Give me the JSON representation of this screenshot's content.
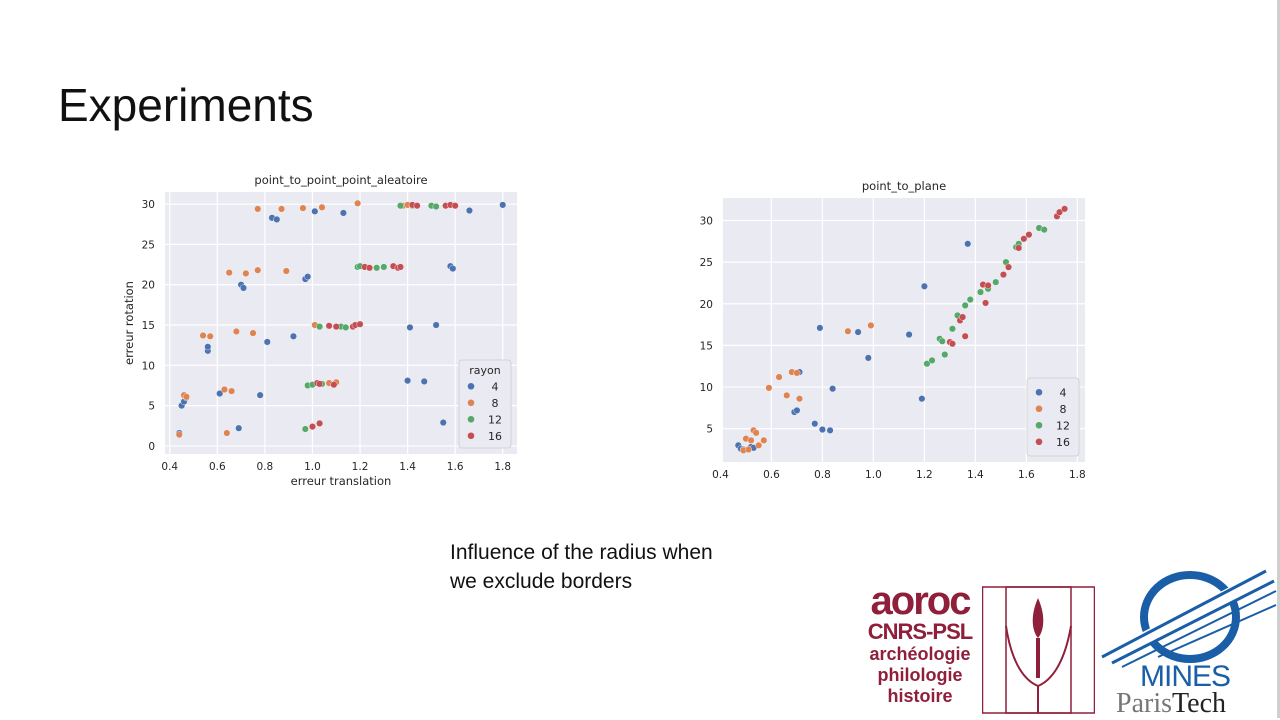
{
  "slide": {
    "title": "Experiments",
    "caption_line1": "Influence of the radius when",
    "caption_line2": "we exclude borders"
  },
  "logos": {
    "aroc_line1": "aoroc",
    "aroc_line2": "CNRS-PSL",
    "aroc_line3": "archéologie",
    "aroc_line4": "philologie",
    "aroc_line5": "histoire",
    "mines_line1": "MINES",
    "mines_line2a": "Paris",
    "mines_line2b": "Tech"
  },
  "chart_data": [
    {
      "type": "scatter",
      "title": "point_to_point_point_aleatoire",
      "xlabel": "erreur translation",
      "ylabel": "erreur rotation",
      "xlim": [
        0.38,
        1.86
      ],
      "ylim": [
        -1,
        31.5
      ],
      "xticks": [
        "0.4",
        "0.6",
        "0.8",
        "1.0",
        "1.2",
        "1.4",
        "1.6",
        "1.8"
      ],
      "yticks": [
        "0",
        "5",
        "10",
        "15",
        "20",
        "25",
        "30"
      ],
      "grid": true,
      "legend_title": "rayon",
      "legend_placement": "lower-right",
      "series": [
        {
          "name": "4",
          "color": "#4c72b0",
          "points": [
            [
              0.44,
              1.6
            ],
            [
              0.45,
              5.0
            ],
            [
              0.46,
              5.5
            ],
            [
              0.47,
              6.0
            ],
            [
              0.56,
              11.8
            ],
            [
              0.56,
              12.3
            ],
            [
              0.61,
              6.5
            ],
            [
              0.69,
              2.2
            ],
            [
              0.7,
              20.0
            ],
            [
              0.71,
              19.6
            ],
            [
              0.78,
              6.3
            ],
            [
              0.81,
              12.9
            ],
            [
              0.83,
              28.3
            ],
            [
              0.85,
              28.1
            ],
            [
              0.92,
              13.6
            ],
            [
              0.97,
              20.7
            ],
            [
              0.98,
              21.0
            ],
            [
              1.01,
              29.1
            ],
            [
              1.13,
              28.9
            ],
            [
              1.4,
              8.1
            ],
            [
              1.41,
              14.7
            ],
            [
              1.47,
              8.0
            ],
            [
              1.52,
              15.0
            ],
            [
              1.55,
              2.9
            ],
            [
              1.58,
              22.3
            ],
            [
              1.59,
              22.0
            ],
            [
              1.66,
              29.2
            ],
            [
              1.8,
              29.9
            ]
          ]
        },
        {
          "name": "8",
          "color": "#dd8452",
          "points": [
            [
              0.44,
              1.4
            ],
            [
              0.46,
              6.3
            ],
            [
              0.47,
              6.1
            ],
            [
              0.54,
              13.7
            ],
            [
              0.57,
              13.6
            ],
            [
              0.63,
              7.0
            ],
            [
              0.64,
              1.6
            ],
            [
              0.65,
              21.5
            ],
            [
              0.66,
              6.8
            ],
            [
              0.68,
              14.2
            ],
            [
              0.72,
              21.4
            ],
            [
              0.75,
              14.0
            ],
            [
              0.77,
              21.8
            ],
            [
              0.77,
              29.4
            ],
            [
              0.87,
              29.4
            ],
            [
              0.89,
              21.7
            ],
            [
              0.96,
              29.5
            ],
            [
              1.01,
              15.0
            ],
            [
              1.04,
              29.6
            ],
            [
              1.07,
              7.8
            ],
            [
              1.1,
              7.9
            ],
            [
              1.19,
              30.1
            ],
            [
              1.38,
              29.8
            ],
            [
              1.4,
              29.9
            ]
          ]
        },
        {
          "name": "12",
          "color": "#55a868",
          "points": [
            [
              0.97,
              2.1
            ],
            [
              0.98,
              7.5
            ],
            [
              1.0,
              7.6
            ],
            [
              1.03,
              14.8
            ],
            [
              1.04,
              7.7
            ],
            [
              1.12,
              14.8
            ],
            [
              1.14,
              14.7
            ],
            [
              1.19,
              22.2
            ],
            [
              1.2,
              22.3
            ],
            [
              1.27,
              22.1
            ],
            [
              1.3,
              22.2
            ],
            [
              1.37,
              29.8
            ],
            [
              1.42,
              29.8
            ],
            [
              1.5,
              29.8
            ],
            [
              1.52,
              29.7
            ]
          ]
        },
        {
          "name": "16",
          "color": "#c44e52",
          "points": [
            [
              1.0,
              2.4
            ],
            [
              1.02,
              7.8
            ],
            [
              1.03,
              2.8
            ],
            [
              1.03,
              7.7
            ],
            [
              1.07,
              14.9
            ],
            [
              1.09,
              7.6
            ],
            [
              1.1,
              14.8
            ],
            [
              1.17,
              14.8
            ],
            [
              1.18,
              15.0
            ],
            [
              1.2,
              15.1
            ],
            [
              1.22,
              22.2
            ],
            [
              1.24,
              22.1
            ],
            [
              1.34,
              22.3
            ],
            [
              1.36,
              22.1
            ],
            [
              1.37,
              22.2
            ],
            [
              1.42,
              29.9
            ],
            [
              1.44,
              29.8
            ],
            [
              1.56,
              29.8
            ],
            [
              1.58,
              29.9
            ],
            [
              1.6,
              29.8
            ]
          ]
        }
      ]
    },
    {
      "type": "scatter",
      "title": "point_to_plane",
      "xlabel": "",
      "ylabel": "",
      "xlim": [
        0.41,
        1.83
      ],
      "ylim": [
        1.0,
        32.7
      ],
      "xticks": [
        "0.4",
        "0.6",
        "0.8",
        "1.0",
        "1.2",
        "1.4",
        "1.6",
        "1.8"
      ],
      "yticks": [
        "5",
        "10",
        "15",
        "20",
        "25",
        "30"
      ],
      "grid": true,
      "legend_title": "",
      "legend_placement": "lower-right",
      "series": [
        {
          "name": "4",
          "color": "#4c72b0",
          "points": [
            [
              0.47,
              3.0
            ],
            [
              0.48,
              2.6
            ],
            [
              0.49,
              2.5
            ],
            [
              0.52,
              2.8
            ],
            [
              0.53,
              2.7
            ],
            [
              0.69,
              7.0
            ],
            [
              0.7,
              7.2
            ],
            [
              0.71,
              11.8
            ],
            [
              0.77,
              5.6
            ],
            [
              0.79,
              17.1
            ],
            [
              0.8,
              4.9
            ],
            [
              0.83,
              4.8
            ],
            [
              0.84,
              9.8
            ],
            [
              0.94,
              16.6
            ],
            [
              0.98,
              13.5
            ],
            [
              1.14,
              16.3
            ],
            [
              1.19,
              8.6
            ],
            [
              1.2,
              22.1
            ],
            [
              1.37,
              27.2
            ]
          ]
        },
        {
          "name": "8",
          "color": "#dd8452",
          "points": [
            [
              0.49,
              2.4
            ],
            [
              0.5,
              3.8
            ],
            [
              0.51,
              2.5
            ],
            [
              0.52,
              3.6
            ],
            [
              0.53,
              4.8
            ],
            [
              0.54,
              4.5
            ],
            [
              0.55,
              3.0
            ],
            [
              0.57,
              3.6
            ],
            [
              0.59,
              9.9
            ],
            [
              0.63,
              11.2
            ],
            [
              0.66,
              9.0
            ],
            [
              0.68,
              11.8
            ],
            [
              0.7,
              11.7
            ],
            [
              0.71,
              8.6
            ],
            [
              0.9,
              16.7
            ],
            [
              0.99,
              17.4
            ]
          ]
        },
        {
          "name": "12",
          "color": "#55a868",
          "points": [
            [
              1.21,
              12.8
            ],
            [
              1.23,
              13.2
            ],
            [
              1.26,
              15.8
            ],
            [
              1.27,
              15.5
            ],
            [
              1.28,
              13.9
            ],
            [
              1.31,
              17.0
            ],
            [
              1.33,
              18.6
            ],
            [
              1.36,
              19.8
            ],
            [
              1.38,
              20.5
            ],
            [
              1.42,
              21.4
            ],
            [
              1.45,
              21.8
            ],
            [
              1.48,
              22.6
            ],
            [
              1.52,
              25.0
            ],
            [
              1.56,
              26.8
            ],
            [
              1.57,
              27.2
            ],
            [
              1.65,
              29.1
            ],
            [
              1.67,
              28.9
            ]
          ]
        },
        {
          "name": "16",
          "color": "#c44e52",
          "points": [
            [
              1.3,
              15.4
            ],
            [
              1.31,
              15.2
            ],
            [
              1.34,
              18.0
            ],
            [
              1.35,
              18.4
            ],
            [
              1.36,
              16.1
            ],
            [
              1.43,
              22.3
            ],
            [
              1.44,
              20.1
            ],
            [
              1.45,
              22.2
            ],
            [
              1.51,
              23.5
            ],
            [
              1.53,
              24.4
            ],
            [
              1.57,
              26.7
            ],
            [
              1.59,
              27.8
            ],
            [
              1.61,
              28.3
            ],
            [
              1.72,
              30.5
            ],
            [
              1.73,
              31.0
            ],
            [
              1.75,
              31.4
            ]
          ]
        }
      ]
    }
  ]
}
